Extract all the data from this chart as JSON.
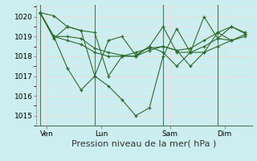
{
  "title": "Pression niveau de la mer( hPa )",
  "bg_color": "#cceef0",
  "plot_bg_color": "#cceef0",
  "grid_major_color": "#f0d8d8",
  "grid_minor_color": "#f0d8d8",
  "vline_color": "#557755",
  "line_color": "#2d6b2d",
  "marker_color": "#2d6b2d",
  "ylim": [
    1014.5,
    1020.6
  ],
  "yticks": [
    1015,
    1016,
    1017,
    1018,
    1019,
    1020
  ],
  "day_labels": [
    "Ven",
    "Lun",
    "Sam",
    "Dim"
  ],
  "xlabel_fontsize": 8,
  "tick_fontsize": 6.5,
  "series": [
    {
      "x": [
        0,
        1,
        2,
        3,
        4,
        5,
        6,
        7,
        8,
        9,
        10,
        11,
        12,
        13,
        14,
        15
      ],
      "y": [
        1020.2,
        1019.0,
        1017.4,
        1016.3,
        1017.0,
        1018.8,
        1019.0,
        1018.05,
        1018.5,
        1018.2,
        1017.5,
        1018.2,
        1020.0,
        1018.9,
        1018.8,
        1019.1
      ]
    },
    {
      "x": [
        0,
        1,
        2,
        3,
        4,
        5,
        6,
        7,
        8,
        9,
        10,
        11,
        12,
        13,
        14
      ],
      "y": [
        1020.2,
        1018.9,
        1019.5,
        1019.3,
        1017.0,
        1016.5,
        1015.8,
        1015.0,
        1015.4,
        1018.0,
        1019.4,
        1018.2,
        1018.2,
        1018.5,
        1018.8
      ]
    },
    {
      "x": [
        0,
        1,
        2,
        3,
        4,
        5,
        6,
        7,
        8,
        9,
        10,
        11,
        12,
        13,
        14,
        15
      ],
      "y": [
        1020.2,
        1019.0,
        1019.0,
        1018.9,
        1018.4,
        1018.2,
        1018.05,
        1018.0,
        1018.3,
        1018.5,
        1018.3,
        1017.5,
        1018.2,
        1019.2,
        1018.8,
        1019.0
      ]
    },
    {
      "x": [
        0,
        1,
        2,
        3,
        4,
        5,
        6,
        7,
        8,
        9,
        10,
        11,
        12,
        13,
        14,
        15
      ],
      "y": [
        1020.2,
        1019.0,
        1018.8,
        1018.6,
        1018.2,
        1018.0,
        1018.0,
        1018.2,
        1018.4,
        1018.5,
        1018.3,
        1018.4,
        1018.8,
        1019.2,
        1019.5,
        1019.15
      ]
    },
    {
      "x": [
        0,
        1,
        2,
        3,
        4,
        5,
        6,
        7,
        8,
        9,
        10,
        11,
        12,
        13,
        14,
        15
      ],
      "y": [
        1020.2,
        1020.05,
        1019.5,
        1019.3,
        1019.2,
        1017.0,
        1018.0,
        1018.0,
        1018.5,
        1019.5,
        1018.2,
        1018.2,
        1018.5,
        1018.9,
        1019.5,
        1019.2
      ]
    }
  ],
  "vline_positions": [
    0,
    4,
    9,
    13
  ],
  "xtick_positions": [
    0.5,
    4.5,
    9.5,
    13.5
  ],
  "xlim": [
    -0.3,
    15.5
  ]
}
